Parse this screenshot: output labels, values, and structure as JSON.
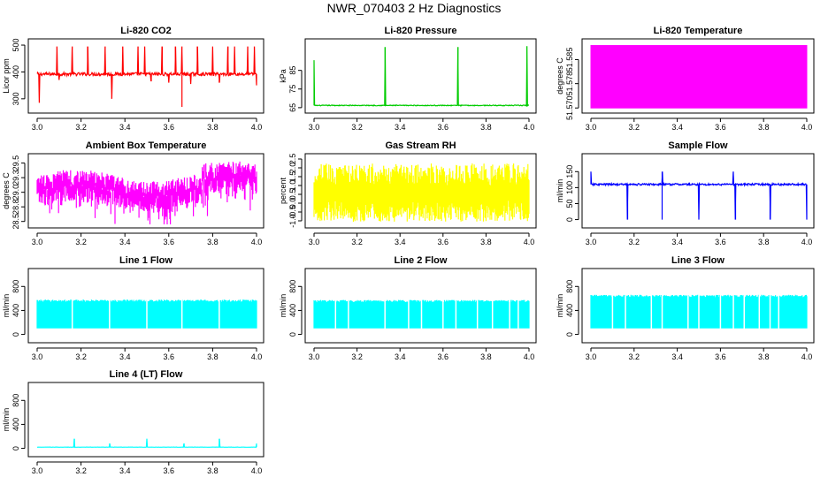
{
  "page": {
    "title": "NWR_070403  2 Hz Diagnostics"
  },
  "chart_data": [
    {
      "id": "co2",
      "type": "line",
      "title": "Li-820 CO2",
      "ylabel": "Licor ppm",
      "color": "#ff0000",
      "xlim": [
        3.0,
        4.0
      ],
      "ylim": [
        260,
        510
      ],
      "xticks": [
        "3.0",
        "3.2",
        "3.4",
        "3.6",
        "3.8",
        "4.0"
      ],
      "xtick_values": [
        3.0,
        3.2,
        3.4,
        3.6,
        3.8,
        4.0
      ],
      "yticks": [
        "300",
        "400",
        "500"
      ],
      "ytick_values": [
        300,
        400,
        500
      ],
      "baseline": 392,
      "noise": 6,
      "spikes": [
        [
          3.09,
          495
        ],
        [
          3.16,
          495
        ],
        [
          3.23,
          495
        ],
        [
          3.31,
          495
        ],
        [
          3.39,
          495
        ],
        [
          3.46,
          495
        ],
        [
          3.49,
          495
        ],
        [
          3.57,
          495
        ],
        [
          3.63,
          495
        ],
        [
          3.66,
          495
        ],
        [
          3.73,
          495
        ],
        [
          3.8,
          495
        ],
        [
          3.87,
          495
        ],
        [
          3.9,
          495
        ],
        [
          3.96,
          495
        ],
        [
          3.99,
          495
        ]
      ],
      "dips": [
        [
          3.01,
          285
        ],
        [
          3.34,
          300
        ],
        [
          3.66,
          270
        ],
        [
          3.7,
          355
        ],
        [
          3.83,
          360
        ],
        [
          3.1,
          370
        ],
        [
          3.52,
          365
        ],
        [
          3.6,
          360
        ],
        [
          4.0,
          350
        ]
      ]
    },
    {
      "id": "pressure",
      "type": "line",
      "title": "Li-820 Pressure",
      "ylabel": "kPa",
      "color": "#00cc00",
      "xlim": [
        3.0,
        4.0
      ],
      "ylim": [
        64,
        100
      ],
      "xticks": [
        "3.0",
        "3.2",
        "3.4",
        "3.6",
        "3.8",
        "4.0"
      ],
      "xtick_values": [
        3.0,
        3.2,
        3.4,
        3.6,
        3.8,
        4.0
      ],
      "yticks": [
        "65",
        "75",
        "85"
      ],
      "ytick_values": [
        65,
        75,
        85
      ],
      "baseline": 66.2,
      "noise": 0.2,
      "spikes": [
        [
          3.0,
          90.5
        ],
        [
          3.33,
          97.5
        ],
        [
          3.67,
          97.5
        ],
        [
          3.99,
          98
        ]
      ]
    },
    {
      "id": "temperature",
      "type": "area",
      "title": "Li-820 Temperature",
      "ylabel": "degrees C",
      "color": "#ff00ff",
      "xlim": [
        3.0,
        4.0
      ],
      "ylim": [
        51.5695,
        51.591
      ],
      "xticks": [
        "3.0",
        "3.2",
        "3.4",
        "3.6",
        "3.8",
        "4.0"
      ],
      "xtick_values": [
        3.0,
        3.2,
        3.4,
        3.6,
        3.8,
        4.0
      ],
      "yticks": [
        "51.570",
        "51.578",
        "51.585"
      ],
      "ytick_values": [
        51.57,
        51.5778,
        51.5855
      ],
      "fill_range": [
        51.57,
        51.59
      ]
    },
    {
      "id": "ambient",
      "type": "line",
      "title": "Ambient Box Temperature",
      "ylabel": "degrees C",
      "color": "#ff00ff",
      "xlim": [
        3.0,
        4.0
      ],
      "ylim": [
        28.45,
        29.6
      ],
      "xticks": [
        "3.0",
        "3.2",
        "3.4",
        "3.6",
        "3.8",
        "4.0"
      ],
      "xtick_values": [
        3.0,
        3.2,
        3.4,
        3.6,
        3.8,
        4.0
      ],
      "yticks": [
        "28.5",
        "28.8",
        "29.0",
        "29.3",
        "29.5"
      ],
      "ytick_values": [
        28.5,
        28.75,
        29.0,
        29.25,
        29.5
      ],
      "baseline": 29.02,
      "noise": 0.15
    },
    {
      "id": "rh",
      "type": "line",
      "title": "Gas Stream RH",
      "ylabel": "percent",
      "color": "#ffff00",
      "xlim": [
        3.0,
        4.0
      ],
      "ylim": [
        -1.2,
        2.6
      ],
      "xticks": [
        "3.0",
        "3.2",
        "3.4",
        "3.6",
        "3.8",
        "4.0"
      ],
      "xtick_values": [
        3.0,
        3.2,
        3.4,
        3.6,
        3.8,
        4.0
      ],
      "yticks": [
        "-1.0",
        "-0.5",
        "0.0",
        "0.5",
        "1.0",
        "1.5",
        "2.0",
        "2.5"
      ],
      "ytick_values": [
        -1.0,
        -0.5,
        0.0,
        0.5,
        1.0,
        1.5,
        2.0,
        2.5
      ],
      "baseline": 0.65,
      "noise": 0.8
    },
    {
      "id": "sample",
      "type": "line",
      "title": "Sample Flow",
      "ylabel": "ml/min",
      "color": "#0000ff",
      "xlim": [
        3.0,
        4.0
      ],
      "ylim": [
        -15,
        195
      ],
      "xticks": [
        "3.0",
        "3.2",
        "3.4",
        "3.6",
        "3.8",
        "4.0"
      ],
      "xtick_values": [
        3.0,
        3.2,
        3.4,
        3.6,
        3.8,
        4.0
      ],
      "yticks": [
        "0",
        "50",
        "100",
        "150"
      ],
      "ytick_values": [
        0,
        50,
        100,
        150
      ],
      "baseline": 110,
      "noise": 3,
      "spikes": [
        [
          3.0,
          150
        ],
        [
          3.33,
          150
        ],
        [
          3.66,
          150
        ]
      ],
      "dips": [
        [
          3.17,
          0
        ],
        [
          3.33,
          0
        ],
        [
          3.5,
          0
        ],
        [
          3.67,
          0
        ],
        [
          3.83,
          0
        ],
        [
          4.0,
          0
        ]
      ]
    },
    {
      "id": "line1",
      "type": "area",
      "title": "Line 1 Flow",
      "ylabel": "ml/min",
      "color": "#00ffff",
      "xlim": [
        3.0,
        4.0
      ],
      "ylim": [
        -80,
        1040
      ],
      "xticks": [
        "3.0",
        "3.2",
        "3.4",
        "3.6",
        "3.8",
        "4.0"
      ],
      "xtick_values": [
        3.0,
        3.2,
        3.4,
        3.6,
        3.8,
        4.0
      ],
      "yticks": [
        "0",
        "400",
        "800"
      ],
      "ytick_values": [
        0,
        400,
        800
      ],
      "low": 100,
      "high": 560,
      "gaps": [
        3.16,
        3.33,
        3.5,
        3.66,
        3.83
      ]
    },
    {
      "id": "line2",
      "type": "area",
      "title": "Line 2 Flow",
      "ylabel": "ml/min",
      "color": "#00ffff",
      "xlim": [
        3.0,
        4.0
      ],
      "ylim": [
        -80,
        1040
      ],
      "xticks": [
        "3.0",
        "3.2",
        "3.4",
        "3.6",
        "3.8",
        "4.0"
      ],
      "xtick_values": [
        3.0,
        3.2,
        3.4,
        3.6,
        3.8,
        4.0
      ],
      "yticks": [
        "0",
        "400",
        "800"
      ],
      "ytick_values": [
        0,
        400,
        800
      ],
      "low": 100,
      "high": 555,
      "gaps": [
        3.1,
        3.16,
        3.33,
        3.44,
        3.5,
        3.6,
        3.66,
        3.76,
        3.83,
        3.91,
        3.95
      ]
    },
    {
      "id": "line3",
      "type": "area",
      "title": "Line 3 Flow",
      "ylabel": "ml/min",
      "color": "#00ffff",
      "xlim": [
        3.0,
        4.0
      ],
      "ylim": [
        -80,
        1040
      ],
      "xticks": [
        "3.0",
        "3.2",
        "3.4",
        "3.6",
        "3.8",
        "4.0"
      ],
      "xtick_values": [
        3.0,
        3.2,
        3.4,
        3.6,
        3.8,
        4.0
      ],
      "yticks": [
        "0",
        "400",
        "800"
      ],
      "ytick_values": [
        0,
        400,
        800
      ],
      "low": 100,
      "high": 640,
      "gaps": [
        3.1,
        3.16,
        3.28,
        3.33,
        3.45,
        3.5,
        3.6,
        3.66,
        3.71,
        3.78,
        3.83,
        3.87
      ]
    },
    {
      "id": "line4",
      "type": "line",
      "title": "Line 4 (LT) Flow",
      "ylabel": "ml/min",
      "color": "#00ffff",
      "xlim": [
        3.0,
        4.0
      ],
      "ylim": [
        -80,
        1040
      ],
      "xticks": [
        "3.0",
        "3.2",
        "3.4",
        "3.6",
        "3.8",
        "4.0"
      ],
      "xtick_values": [
        3.0,
        3.2,
        3.4,
        3.6,
        3.8,
        4.0
      ],
      "yticks": [
        "0",
        "400",
        "800"
      ],
      "ytick_values": [
        0,
        400,
        800
      ],
      "baseline": 20,
      "noise": 2,
      "spikes": [
        [
          3.17,
          160
        ],
        [
          3.33,
          80
        ],
        [
          3.5,
          160
        ],
        [
          3.67,
          80
        ],
        [
          3.83,
          160
        ],
        [
          4.0,
          80
        ]
      ]
    }
  ]
}
